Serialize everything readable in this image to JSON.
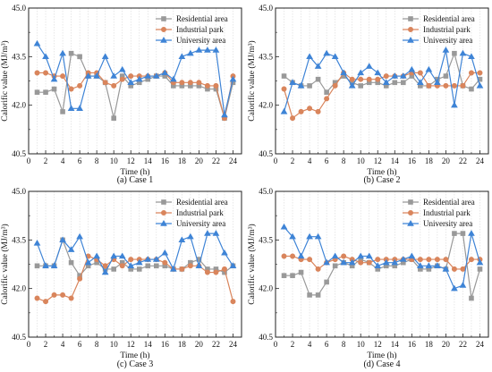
{
  "chart_data": [
    {
      "type": "line",
      "caption": "(a) Case 1",
      "xlabel": "Time (h)",
      "ylabel": "Calorific value (MJ/m³)",
      "ylim": [
        40.5,
        45.0
      ],
      "xlim": [
        0,
        25
      ],
      "xticks": [
        "0",
        "2",
        "4",
        "6",
        "8",
        "10",
        "12",
        "14",
        "16",
        "18",
        "20",
        "22",
        "24"
      ],
      "yticks": [
        "40.5",
        "42.0",
        "43.5",
        "45.0"
      ],
      "legend_position": "top-right",
      "x": [
        1,
        2,
        3,
        4,
        5,
        6,
        7,
        8,
        9,
        10,
        11,
        12,
        13,
        14,
        15,
        16,
        17,
        18,
        19,
        20,
        21,
        22,
        23,
        24
      ],
      "series": [
        {
          "name": "Residential area",
          "color": "#999999",
          "marker": "square",
          "values": [
            42.4,
            42.4,
            42.5,
            41.8,
            43.6,
            43.5,
            42.9,
            42.9,
            42.7,
            41.6,
            42.9,
            42.6,
            42.7,
            42.8,
            42.9,
            42.9,
            42.6,
            42.6,
            42.6,
            42.6,
            42.5,
            42.5,
            41.6,
            42.7
          ]
        },
        {
          "name": "Industrial park",
          "color": "#d9855c",
          "marker": "circle",
          "values": [
            43.0,
            43.0,
            42.9,
            42.9,
            42.5,
            42.6,
            43.0,
            43.0,
            42.7,
            42.6,
            42.8,
            42.9,
            42.9,
            42.9,
            42.9,
            43.0,
            42.7,
            42.7,
            42.7,
            42.7,
            42.6,
            42.6,
            41.6,
            42.9
          ]
        },
        {
          "name": "University area",
          "color": "#3f84d6",
          "marker": "triangle",
          "values": [
            43.9,
            43.5,
            42.8,
            43.6,
            41.9,
            41.9,
            42.9,
            42.9,
            43.5,
            42.9,
            43.1,
            42.7,
            42.8,
            42.9,
            42.9,
            43.0,
            42.8,
            43.5,
            43.6,
            43.7,
            43.7,
            43.7,
            41.7,
            42.8
          ]
        }
      ]
    },
    {
      "type": "line",
      "caption": "(b) Case 2",
      "xlabel": "Time (h)",
      "ylabel": "Calorific value (MJ/m³)",
      "ylim": [
        40.5,
        45.0
      ],
      "xlim": [
        0,
        25
      ],
      "xticks": [
        "0",
        "2",
        "4",
        "6",
        "8",
        "10",
        "12",
        "14",
        "16",
        "18",
        "20",
        "22",
        "24"
      ],
      "yticks": [
        "40.5",
        "42.0",
        "43.5",
        "45.0"
      ],
      "legend_position": "top-right",
      "x": [
        1,
        2,
        3,
        4,
        5,
        6,
        7,
        8,
        9,
        10,
        11,
        12,
        13,
        14,
        15,
        16,
        17,
        18,
        19,
        20,
        21,
        22,
        23,
        24
      ],
      "series": [
        {
          "name": "Residential area",
          "color": "#999999",
          "marker": "square",
          "values": [
            42.9,
            42.7,
            42.6,
            42.6,
            42.8,
            42.4,
            42.7,
            42.9,
            42.7,
            42.6,
            42.7,
            42.7,
            42.6,
            42.7,
            42.7,
            42.9,
            42.6,
            42.6,
            42.8,
            42.9,
            43.6,
            42.6,
            42.5,
            42.8
          ]
        },
        {
          "name": "Industrial park",
          "color": "#d9855c",
          "marker": "circle",
          "values": [
            42.5,
            41.6,
            41.8,
            41.9,
            41.8,
            42.2,
            42.6,
            43.0,
            42.8,
            42.8,
            42.8,
            42.8,
            42.9,
            42.9,
            42.9,
            43.0,
            43.0,
            42.6,
            42.6,
            42.6,
            42.6,
            42.6,
            43.0,
            43.0
          ]
        },
        {
          "name": "University area",
          "color": "#3f84d6",
          "marker": "triangle",
          "values": [
            41.8,
            42.7,
            42.6,
            43.5,
            43.2,
            43.6,
            43.5,
            43.0,
            42.6,
            43.0,
            43.2,
            43.0,
            42.7,
            42.9,
            42.9,
            43.1,
            42.7,
            43.1,
            42.7,
            43.7,
            42.0,
            43.6,
            43.5,
            42.6
          ]
        }
      ]
    },
    {
      "type": "line",
      "caption": "(c) Case 3",
      "xlabel": "Time (h)",
      "ylabel": "Calorific value (MJ/m³)",
      "ylim": [
        40.5,
        45.0
      ],
      "xlim": [
        0,
        25
      ],
      "xticks": [
        "0",
        "2",
        "4",
        "6",
        "8",
        "10",
        "12",
        "14",
        "16",
        "18",
        "20",
        "22",
        "24"
      ],
      "yticks": [
        "40.5",
        "42.0",
        "43.5",
        "45.0"
      ],
      "legend_position": "top-right",
      "x": [
        1,
        2,
        3,
        4,
        5,
        6,
        7,
        8,
        9,
        10,
        11,
        12,
        13,
        14,
        15,
        16,
        17,
        18,
        19,
        20,
        21,
        22,
        23,
        24
      ],
      "series": [
        {
          "name": "Residential area",
          "color": "#999999",
          "marker": "square",
          "values": [
            42.7,
            42.7,
            42.7,
            43.5,
            42.8,
            42.4,
            42.7,
            42.8,
            42.6,
            42.6,
            42.8,
            42.6,
            42.6,
            42.7,
            42.7,
            42.7,
            42.6,
            42.6,
            42.8,
            42.9,
            42.6,
            42.6,
            42.5,
            42.7
          ]
        },
        {
          "name": "Industrial park",
          "color": "#d9855c",
          "marker": "circle",
          "values": [
            41.7,
            41.6,
            41.8,
            41.8,
            41.7,
            42.3,
            43.0,
            42.9,
            42.7,
            42.9,
            42.7,
            42.9,
            42.9,
            42.9,
            42.9,
            42.8,
            42.6,
            42.6,
            42.7,
            42.7,
            42.5,
            42.5,
            42.6,
            41.6
          ]
        },
        {
          "name": "University area",
          "color": "#3f84d6",
          "marker": "triangle",
          "values": [
            43.4,
            42.7,
            42.7,
            43.5,
            43.2,
            43.6,
            42.8,
            43.0,
            42.5,
            43.0,
            43.0,
            42.7,
            42.8,
            42.9,
            42.9,
            43.1,
            42.6,
            43.5,
            43.6,
            42.7,
            43.7,
            43.7,
            43.1,
            42.7
          ]
        }
      ]
    },
    {
      "type": "line",
      "caption": "(d) Case 4",
      "xlabel": "Time (h)",
      "ylabel": "Calorific value (MJ/m³)",
      "ylim": [
        40.5,
        45.0
      ],
      "xlim": [
        0,
        25
      ],
      "xticks": [
        "0",
        "2",
        "4",
        "6",
        "8",
        "10",
        "12",
        "14",
        "16",
        "18",
        "20",
        "22",
        "24"
      ],
      "yticks": [
        "40.5",
        "42.0",
        "43.5",
        "45.0"
      ],
      "legend_position": "top-right",
      "x": [
        1,
        2,
        3,
        4,
        5,
        6,
        7,
        8,
        9,
        10,
        11,
        12,
        13,
        14,
        15,
        16,
        17,
        18,
        19,
        20,
        21,
        22,
        23,
        24
      ],
      "series": [
        {
          "name": "Residential area",
          "color": "#999999",
          "marker": "square",
          "values": [
            42.4,
            42.4,
            42.5,
            41.8,
            41.8,
            42.2,
            42.7,
            42.8,
            42.7,
            42.9,
            42.8,
            42.6,
            42.7,
            42.7,
            42.8,
            42.9,
            42.6,
            42.6,
            42.7,
            42.6,
            43.7,
            43.7,
            41.7,
            42.6
          ]
        },
        {
          "name": "Industrial park",
          "color": "#d9855c",
          "marker": "circle",
          "values": [
            43.0,
            43.0,
            42.9,
            42.9,
            42.6,
            42.8,
            42.9,
            43.0,
            42.9,
            42.8,
            42.8,
            42.9,
            42.9,
            42.9,
            42.9,
            42.9,
            42.9,
            42.9,
            42.9,
            42.9,
            42.6,
            42.6,
            42.9,
            42.9
          ]
        },
        {
          "name": "University area",
          "color": "#3f84d6",
          "marker": "triangle",
          "values": [
            43.9,
            43.6,
            43.0,
            43.6,
            43.6,
            42.8,
            43.0,
            42.8,
            42.8,
            43.0,
            43.0,
            42.7,
            42.8,
            42.8,
            42.9,
            43.0,
            42.7,
            42.7,
            42.7,
            42.6,
            42.0,
            42.1,
            43.7,
            42.8
          ]
        }
      ]
    }
  ]
}
